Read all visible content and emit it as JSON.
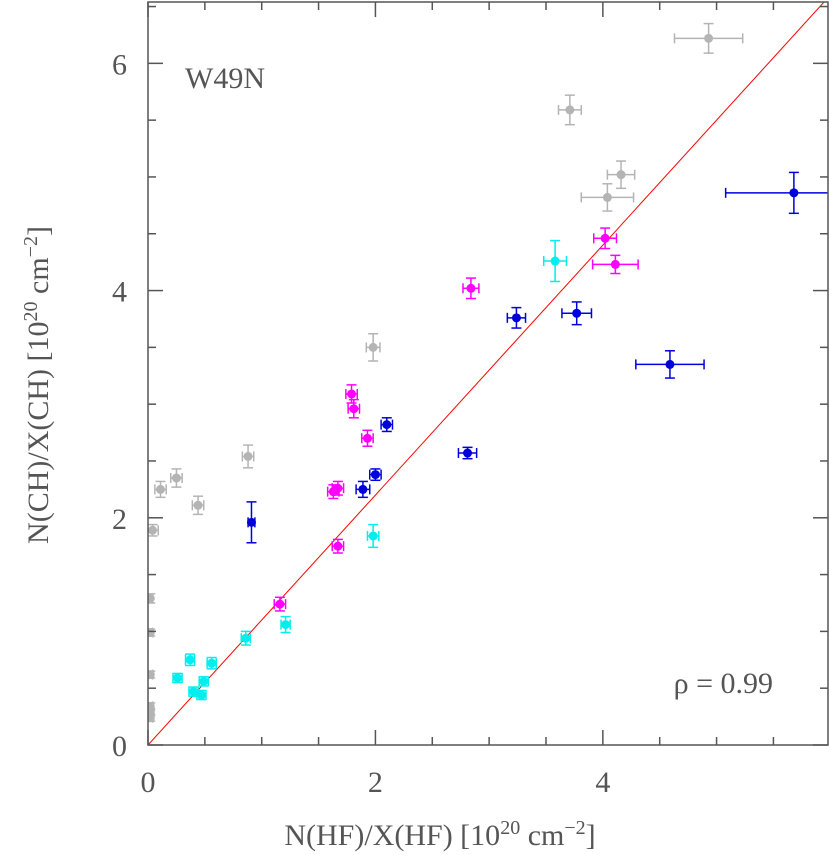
{
  "chart_data": {
    "type": "scatter",
    "annotations": [
      "W49N",
      "ρ = 0.99"
    ],
    "xlabel": [
      "N(HF)/X(HF)  [10",
      "20",
      " cm",
      "−2",
      "]"
    ],
    "ylabel": [
      "N(CH)/X(CH)  [10",
      "20",
      " cm",
      "−2",
      "]"
    ],
    "xlim": [
      0,
      5.98
    ],
    "ylim": [
      0,
      6.54
    ],
    "xticks": [
      0,
      2,
      4
    ],
    "yticks": [
      0,
      2,
      4,
      6
    ],
    "minor_xticks": [
      0.5,
      1,
      1.5,
      2.5,
      3,
      3.5,
      4.5,
      5,
      5.5
    ],
    "minor_yticks": [
      0.5,
      1,
      1.5,
      2.5,
      3,
      3.5,
      4.5,
      5,
      5.5,
      6.5
    ],
    "fit_slope": 1.1,
    "fit_color": "#ff0000",
    "series": [
      {
        "color": "#b4b4b4",
        "x": [
          4.93,
          3.71,
          4.16,
          4.04,
          1.98,
          0.88,
          0.25,
          0.11,
          0.44,
          0.04,
          0.02,
          0.02,
          0.02,
          0.02,
          0.02,
          0.02
        ],
        "y": [
          6.22,
          5.59,
          5.02,
          4.82,
          3.5,
          2.54,
          2.35,
          2.25,
          2.11,
          1.89,
          1.29,
          0.99,
          0.62,
          0.34,
          0.29,
          0.24
        ],
        "xerr": [
          0.3,
          0.1,
          0.12,
          0.23,
          0.06,
          0.05,
          0.05,
          0.05,
          0.05,
          0.05,
          0.02,
          0.02,
          0.02,
          0.02,
          0.02,
          0.02
        ],
        "yerr": [
          0.13,
          0.13,
          0.12,
          0.12,
          0.12,
          0.1,
          0.08,
          0.07,
          0.08,
          0.05,
          0.04,
          0.03,
          0.03,
          0.03,
          0.03,
          0.03
        ]
      },
      {
        "color": "#0000dd",
        "x": [
          5.68,
          3.24,
          3.77,
          4.59,
          2.1,
          2.81,
          2.0,
          1.89,
          0.91
        ],
        "y": [
          4.86,
          3.76,
          3.8,
          3.35,
          2.82,
          2.57,
          2.38,
          2.25,
          1.96
        ],
        "xerr": [
          0.6,
          0.08,
          0.13,
          0.3,
          0.05,
          0.08,
          0.05,
          0.06,
          0.03
        ],
        "yerr": [
          0.18,
          0.09,
          0.1,
          0.12,
          0.06,
          0.05,
          0.05,
          0.07,
          0.18
        ]
      },
      {
        "color": "#ff00ff",
        "x": [
          2.84,
          4.02,
          4.11,
          1.79,
          1.81,
          1.93,
          1.67,
          1.63,
          1.67,
          1.16
        ],
        "y": [
          4.02,
          4.46,
          4.23,
          3.09,
          2.96,
          2.7,
          2.26,
          2.23,
          1.75,
          1.24
        ],
        "xerr": [
          0.07,
          0.1,
          0.2,
          0.05,
          0.05,
          0.05,
          0.05,
          0.05,
          0.05,
          0.05
        ],
        "yerr": [
          0.09,
          0.09,
          0.08,
          0.08,
          0.08,
          0.07,
          0.06,
          0.06,
          0.06,
          0.06
        ]
      },
      {
        "color": "#00eeee",
        "x": [
          3.58,
          1.98,
          1.21,
          0.86,
          0.37,
          0.56,
          0.26,
          0.49,
          0.4,
          0.47
        ],
        "y": [
          4.26,
          1.84,
          1.06,
          0.94,
          0.75,
          0.72,
          0.59,
          0.56,
          0.47,
          0.44
        ],
        "xerr": [
          0.1,
          0.05,
          0.04,
          0.04,
          0.04,
          0.04,
          0.04,
          0.04,
          0.04,
          0.04
        ],
        "yerr": [
          0.18,
          0.1,
          0.07,
          0.06,
          0.05,
          0.05,
          0.04,
          0.04,
          0.04,
          0.04
        ]
      }
    ]
  }
}
